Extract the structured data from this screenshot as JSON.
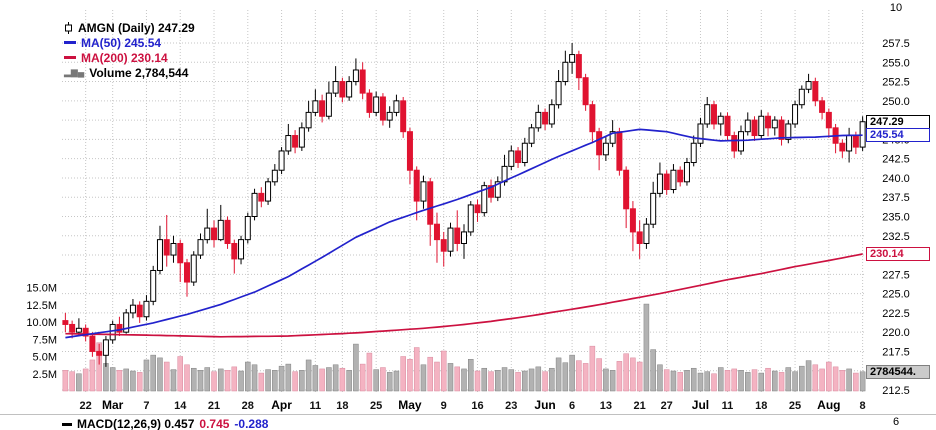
{
  "legend": {
    "symbol_line": "AMGN (Daily) 247.29",
    "ma50": "MA(50) 245.54",
    "ma200": "MA(200) 230.14",
    "volume": "Volume 2,784,544"
  },
  "tags": {
    "last_price": "247.29",
    "ma50": "245.54",
    "ma200": "230.14",
    "volume": "2784544."
  },
  "axes": {
    "top_right_label": "10",
    "macd_axis_label": "6"
  },
  "macd": {
    "label": "MACD(12,26,9) 0.457",
    "signal_value": "0.745",
    "hist_value": "-0.288"
  },
  "colors": {
    "candle_down": "#e01330",
    "candle_up_outline": "#000000",
    "ma50": "#2222cc",
    "ma200": "#cc1140",
    "volume_up": "#b2b2b2",
    "volume_down": "#f4b3c2",
    "grid": "#c6c6c6",
    "background": "#ffffff"
  },
  "chart_data": {
    "type": "candlestick",
    "title": "AMGN (Daily)",
    "last_close": 247.29,
    "ma50_last": 245.54,
    "ma200_last": 230.14,
    "volume_last_millions": 2.784544,
    "price_axis": {
      "min": 212.5,
      "max": 257.5,
      "step": 2.5
    },
    "volume_axis_millions": [
      15.0,
      12.5,
      10.0,
      7.5,
      5.0,
      2.5
    ],
    "x_ticks": [
      {
        "i": 3,
        "label": "22"
      },
      {
        "i": 7,
        "label": "Mar",
        "month": true
      },
      {
        "i": 12,
        "label": "7"
      },
      {
        "i": 17,
        "label": "14"
      },
      {
        "i": 22,
        "label": "21"
      },
      {
        "i": 27,
        "label": "28"
      },
      {
        "i": 32,
        "label": "Apr",
        "month": true
      },
      {
        "i": 37,
        "label": "11"
      },
      {
        "i": 41,
        "label": "18"
      },
      {
        "i": 46,
        "label": "25"
      },
      {
        "i": 51,
        "label": "May",
        "month": true
      },
      {
        "i": 56,
        "label": "9"
      },
      {
        "i": 61,
        "label": "16"
      },
      {
        "i": 66,
        "label": "23"
      },
      {
        "i": 71,
        "label": "Jun",
        "month": true
      },
      {
        "i": 75,
        "label": "6"
      },
      {
        "i": 80,
        "label": "13"
      },
      {
        "i": 85,
        "label": "21"
      },
      {
        "i": 89,
        "label": "27"
      },
      {
        "i": 94,
        "label": "Jul",
        "month": true
      },
      {
        "i": 98,
        "label": "11"
      },
      {
        "i": 103,
        "label": "18"
      },
      {
        "i": 108,
        "label": "25"
      },
      {
        "i": 113,
        "label": "Aug",
        "month": true
      },
      {
        "i": 118,
        "label": "8"
      }
    ],
    "candles_format": [
      "open",
      "high",
      "low",
      "close",
      "volume_millions"
    ],
    "candles": [
      [
        221.5,
        222.5,
        220.0,
        221.0,
        3.0
      ],
      [
        221.0,
        221.5,
        219.2,
        220.0,
        2.8
      ],
      [
        220.0,
        221.8,
        219.5,
        220.5,
        2.5
      ],
      [
        220.5,
        221.0,
        218.8,
        219.5,
        3.2
      ],
      [
        219.5,
        220.0,
        216.8,
        217.5,
        4.5
      ],
      [
        217.5,
        218.5,
        215.8,
        217.0,
        7.0
      ],
      [
        217.0,
        219.5,
        215.5,
        219.0,
        4.0
      ],
      [
        219.0,
        221.5,
        218.5,
        221.0,
        3.4
      ],
      [
        221.0,
        222.0,
        219.5,
        220.0,
        3.0
      ],
      [
        220.0,
        223.0,
        219.8,
        222.5,
        3.2
      ],
      [
        222.5,
        224.3,
        221.8,
        223.5,
        2.9
      ],
      [
        223.5,
        224.0,
        221.2,
        222.0,
        2.7
      ],
      [
        222.0,
        224.8,
        221.5,
        224.0,
        4.5
      ],
      [
        224.0,
        228.6,
        223.5,
        228.0,
        5.2
      ],
      [
        228.0,
        233.8,
        227.5,
        232.0,
        4.8
      ],
      [
        232.0,
        235.2,
        228.5,
        230.0,
        4.2
      ],
      [
        230.0,
        232.5,
        229.0,
        231.5,
        3.1
      ],
      [
        231.5,
        232.0,
        226.5,
        229.0,
        5.0
      ],
      [
        229.0,
        229.5,
        224.6,
        226.5,
        3.8
      ],
      [
        226.5,
        230.5,
        226.0,
        230.0,
        3.3
      ],
      [
        230.0,
        232.8,
        229.5,
        232.0,
        3.0
      ],
      [
        232.0,
        236.0,
        231.5,
        233.5,
        3.4
      ],
      [
        233.5,
        234.5,
        231.0,
        232.0,
        2.8
      ],
      [
        232.0,
        236.5,
        231.8,
        234.5,
        3.2
      ],
      [
        234.5,
        235.0,
        230.8,
        231.5,
        3.0
      ],
      [
        231.5,
        232.0,
        227.6,
        229.5,
        3.5
      ],
      [
        229.5,
        232.5,
        228.8,
        232.0,
        2.9
      ],
      [
        232.0,
        235.5,
        231.5,
        235.0,
        4.2
      ],
      [
        235.0,
        238.6,
        234.5,
        238.0,
        3.8
      ],
      [
        238.0,
        238.8,
        236.2,
        237.0,
        2.6
      ],
      [
        237.0,
        240.0,
        236.5,
        239.5,
        3.1
      ],
      [
        239.5,
        241.8,
        239.0,
        241.0,
        3.0
      ],
      [
        241.0,
        244.0,
        240.5,
        243.5,
        3.6
      ],
      [
        243.5,
        247.0,
        243.0,
        245.5,
        3.9
      ],
      [
        245.5,
        246.2,
        243.2,
        244.0,
        2.8
      ],
      [
        244.0,
        247.2,
        243.5,
        246.5,
        3.0
      ],
      [
        246.5,
        250.0,
        246.0,
        248.5,
        4.5
      ],
      [
        248.5,
        251.5,
        248.0,
        250.0,
        3.7
      ],
      [
        250.0,
        250.8,
        247.2,
        248.0,
        3.2
      ],
      [
        248.0,
        252.5,
        247.6,
        251.0,
        3.4
      ],
      [
        251.0,
        254.5,
        250.5,
        252.5,
        3.8
      ],
      [
        252.5,
        253.0,
        249.8,
        250.5,
        3.3
      ],
      [
        250.5,
        253.2,
        250.0,
        252.5,
        3.0
      ],
      [
        252.5,
        255.5,
        252.0,
        254.0,
        6.8
      ],
      [
        254.0,
        255.0,
        250.2,
        251.0,
        3.9
      ],
      [
        251.0,
        251.5,
        247.8,
        248.5,
        5.5
      ],
      [
        248.5,
        251.2,
        248.0,
        250.5,
        3.1
      ],
      [
        250.5,
        251.0,
        246.8,
        247.5,
        3.4
      ],
      [
        247.5,
        249.3,
        246.5,
        248.5,
        2.7
      ],
      [
        248.5,
        250.8,
        248.0,
        250.0,
        2.9
      ],
      [
        250.0,
        250.5,
        245.2,
        246.0,
        5.0
      ],
      [
        246.0,
        246.5,
        239.2,
        241.0,
        4.6
      ],
      [
        241.0,
        241.5,
        234.5,
        237.0,
        6.3
      ],
      [
        237.0,
        240.3,
        236.0,
        239.5,
        3.8
      ],
      [
        239.5,
        240.0,
        231.2,
        234.0,
        4.9
      ],
      [
        234.0,
        235.5,
        229.0,
        232.0,
        4.2
      ],
      [
        232.0,
        233.0,
        228.5,
        230.5,
        5.8
      ],
      [
        230.5,
        234.2,
        229.8,
        233.5,
        4.0
      ],
      [
        233.5,
        235.8,
        230.5,
        231.5,
        3.5
      ],
      [
        231.5,
        234.0,
        229.5,
        233.0,
        3.2
      ],
      [
        233.0,
        237.0,
        232.5,
        236.5,
        4.6
      ],
      [
        236.5,
        237.2,
        234.3,
        235.5,
        2.9
      ],
      [
        235.5,
        239.5,
        235.0,
        239.0,
        3.3
      ],
      [
        239.0,
        239.8,
        236.8,
        237.5,
        2.8
      ],
      [
        237.5,
        240.2,
        237.0,
        239.5,
        3.0
      ],
      [
        239.5,
        243.0,
        239.0,
        241.5,
        3.4
      ],
      [
        241.5,
        244.2,
        241.0,
        243.5,
        3.1
      ],
      [
        243.5,
        244.0,
        241.3,
        242.0,
        2.7
      ],
      [
        242.0,
        245.2,
        241.5,
        244.5,
        2.9
      ],
      [
        244.5,
        247.0,
        244.0,
        246.5,
        3.2
      ],
      [
        246.5,
        249.5,
        246.0,
        248.5,
        3.5
      ],
      [
        248.5,
        249.0,
        246.2,
        247.0,
        2.8
      ],
      [
        247.0,
        250.2,
        246.5,
        249.5,
        3.3
      ],
      [
        249.5,
        254.0,
        249.0,
        252.5,
        4.8
      ],
      [
        252.5,
        256.5,
        252.0,
        255.0,
        4.1
      ],
      [
        255.0,
        257.5,
        253.5,
        256.0,
        5.2
      ],
      [
        256.0,
        256.5,
        251.4,
        253.0,
        4.4
      ],
      [
        253.0,
        253.5,
        248.7,
        249.5,
        4.0
      ],
      [
        249.5,
        250.0,
        244.5,
        246.0,
        6.5
      ],
      [
        246.0,
        246.5,
        241.0,
        243.0,
        4.7
      ],
      [
        243.0,
        245.3,
        242.2,
        244.5,
        3.2
      ],
      [
        244.5,
        247.5,
        244.0,
        246.0,
        3.0
      ],
      [
        246.0,
        246.5,
        240.3,
        241.0,
        4.3
      ],
      [
        241.0,
        241.5,
        233.5,
        236.0,
        5.4
      ],
      [
        236.0,
        237.0,
        230.5,
        233.0,
        4.8
      ],
      [
        233.0,
        234.5,
        229.5,
        231.5,
        4.2
      ],
      [
        231.5,
        234.8,
        230.8,
        234.0,
        12.6
      ],
      [
        234.0,
        239.5,
        233.5,
        238.0,
        6.0
      ],
      [
        238.0,
        242.0,
        237.5,
        240.5,
        3.8
      ],
      [
        240.5,
        241.0,
        237.8,
        238.5,
        3.1
      ],
      [
        238.5,
        241.8,
        238.0,
        241.0,
        2.9
      ],
      [
        241.0,
        241.5,
        238.9,
        239.5,
        2.7
      ],
      [
        239.5,
        242.6,
        239.0,
        242.0,
        3.0
      ],
      [
        242.0,
        245.5,
        241.5,
        244.5,
        3.3
      ],
      [
        244.5,
        247.8,
        244.0,
        247.0,
        2.6
      ],
      [
        247.0,
        250.5,
        246.5,
        249.5,
        2.8
      ],
      [
        249.5,
        250.0,
        246.3,
        247.0,
        2.5
      ],
      [
        247.0,
        248.5,
        245.5,
        248.0,
        3.4
      ],
      [
        248.0,
        248.5,
        244.9,
        245.5,
        3.0
      ],
      [
        245.5,
        246.0,
        242.6,
        243.5,
        3.2
      ],
      [
        243.5,
        246.8,
        243.0,
        246.0,
        3.0
      ],
      [
        246.0,
        248.5,
        245.5,
        247.5,
        2.7
      ],
      [
        247.5,
        248.0,
        244.8,
        245.5,
        3.1
      ],
      [
        245.5,
        248.8,
        245.0,
        248.0,
        2.6
      ],
      [
        248.0,
        248.5,
        245.4,
        246.5,
        3.3
      ],
      [
        246.5,
        248.0,
        245.5,
        247.5,
        2.9
      ],
      [
        247.5,
        248.0,
        244.2,
        245.0,
        2.7
      ],
      [
        245.0,
        247.5,
        244.5,
        247.0,
        3.4
      ],
      [
        247.0,
        250.0,
        246.5,
        249.5,
        2.8
      ],
      [
        249.5,
        252.0,
        249.0,
        251.5,
        3.6
      ],
      [
        251.5,
        253.5,
        251.0,
        252.5,
        4.4
      ],
      [
        252.5,
        253.0,
        249.3,
        250.0,
        3.8
      ],
      [
        250.0,
        250.5,
        247.6,
        248.5,
        3.2
      ],
      [
        248.5,
        249.0,
        245.2,
        246.5,
        4.2
      ],
      [
        246.5,
        247.0,
        243.2,
        244.5,
        3.5
      ],
      [
        244.5,
        245.0,
        242.6,
        243.5,
        3.0
      ],
      [
        243.5,
        246.5,
        242.0,
        245.5,
        3.2
      ],
      [
        245.5,
        246.0,
        243.1,
        244.0,
        2.6
      ],
      [
        244.0,
        248.0,
        243.5,
        247.29,
        2.784544
      ]
    ],
    "ma50_anchors": [
      [
        0,
        219.3
      ],
      [
        8,
        220.3
      ],
      [
        13,
        221.2
      ],
      [
        18,
        222.3
      ],
      [
        23,
        223.6
      ],
      [
        28,
        225.2
      ],
      [
        33,
        227.2
      ],
      [
        38,
        229.7
      ],
      [
        43,
        232.3
      ],
      [
        48,
        234.3
      ],
      [
        53,
        235.8
      ],
      [
        58,
        237.2
      ],
      [
        63,
        238.8
      ],
      [
        68,
        240.8
      ],
      [
        73,
        242.8
      ],
      [
        78,
        244.6
      ],
      [
        81,
        245.8
      ],
      [
        85,
        246.3
      ],
      [
        89,
        246.0
      ],
      [
        93,
        245.2
      ],
      [
        97,
        244.8
      ],
      [
        101,
        244.9
      ],
      [
        106,
        245.2
      ],
      [
        111,
        245.3
      ],
      [
        115,
        245.5
      ],
      [
        118,
        245.54
      ]
    ],
    "ma200_anchors": [
      [
        0,
        219.8
      ],
      [
        13,
        219.6
      ],
      [
        23,
        219.4
      ],
      [
        33,
        219.5
      ],
      [
        43,
        219.9
      ],
      [
        53,
        220.5
      ],
      [
        58,
        220.9
      ],
      [
        63,
        221.4
      ],
      [
        68,
        222.0
      ],
      [
        73,
        222.7
      ],
      [
        78,
        223.4
      ],
      [
        83,
        224.2
      ],
      [
        88,
        225.0
      ],
      [
        93,
        225.9
      ],
      [
        98,
        226.8
      ],
      [
        103,
        227.6
      ],
      [
        108,
        228.5
      ],
      [
        113,
        229.3
      ],
      [
        118,
        230.14
      ]
    ]
  }
}
